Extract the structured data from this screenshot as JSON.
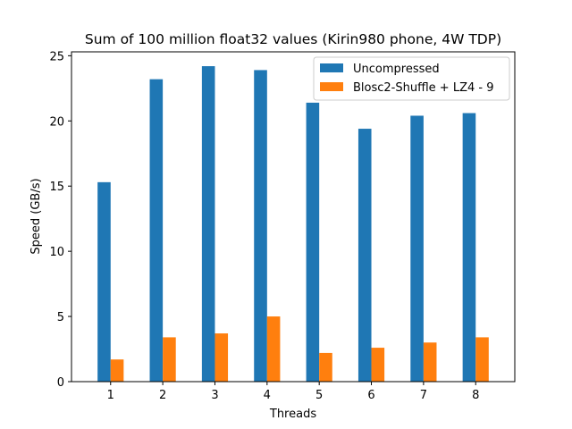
{
  "chart_data": {
    "type": "bar",
    "title": "Sum of 100 million float32 values (Kirin980 phone, 4W TDP)",
    "xlabel": "Threads",
    "ylabel": "Speed (GB/s)",
    "categories": [
      "1",
      "2",
      "3",
      "4",
      "5",
      "6",
      "7",
      "8"
    ],
    "ylim": [
      0,
      25.3
    ],
    "yticks": [
      0,
      5,
      10,
      15,
      20,
      25
    ],
    "legend_position": "top-right",
    "grid": false,
    "series": [
      {
        "name": "Uncompressed",
        "color": "#1f77b4",
        "values": [
          15.3,
          23.2,
          24.2,
          23.9,
          21.4,
          19.4,
          20.4,
          20.6
        ]
      },
      {
        "name": "Blosc2-Shuffle + LZ4 - 9",
        "color": "#ff7f0e",
        "values": [
          1.7,
          3.4,
          3.7,
          5.0,
          2.2,
          2.6,
          3.0,
          3.4
        ]
      }
    ]
  }
}
